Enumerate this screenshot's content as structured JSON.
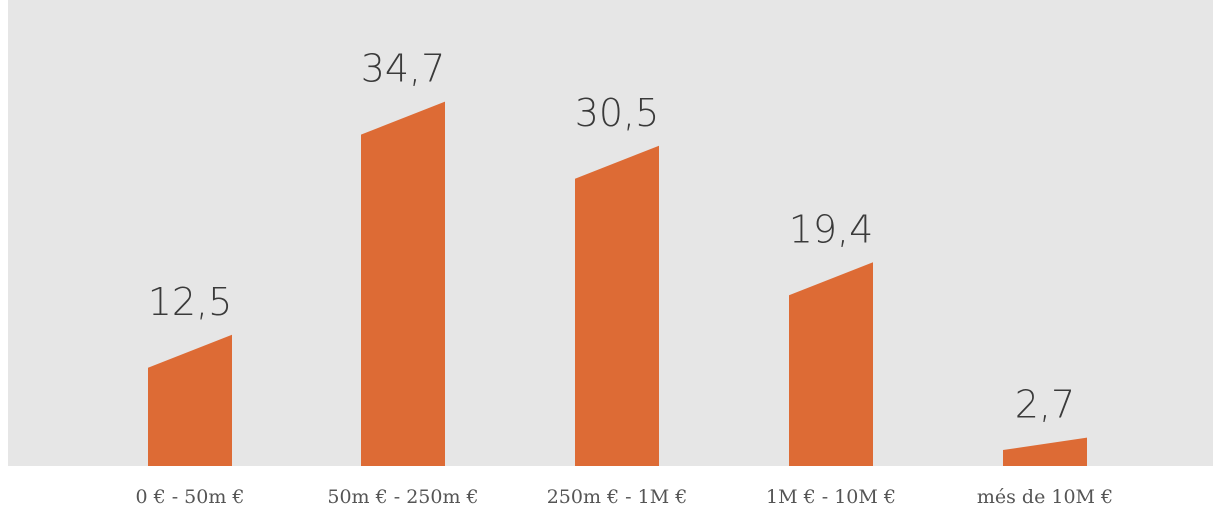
{
  "chart_data": {
    "type": "bar",
    "categories": [
      "0 € - 50m €",
      "50m € - 250m €",
      "250m € - 1M €",
      "1M € - 10M €",
      "més de 10M €"
    ],
    "values": [
      12.5,
      34.7,
      30.5,
      19.4,
      2.7
    ],
    "value_labels": [
      "12,5",
      "34,7",
      "30,5",
      "19,4",
      "2,7"
    ],
    "title": "",
    "xlabel": "",
    "ylabel": "",
    "ylim": [
      0,
      38
    ],
    "grid": false,
    "legend": "none"
  },
  "colors": {
    "bar": "#DD6B35",
    "plot_background": "#E6E6E6",
    "page_background": "#FFFFFF",
    "label_text": "#3A3A3A"
  }
}
